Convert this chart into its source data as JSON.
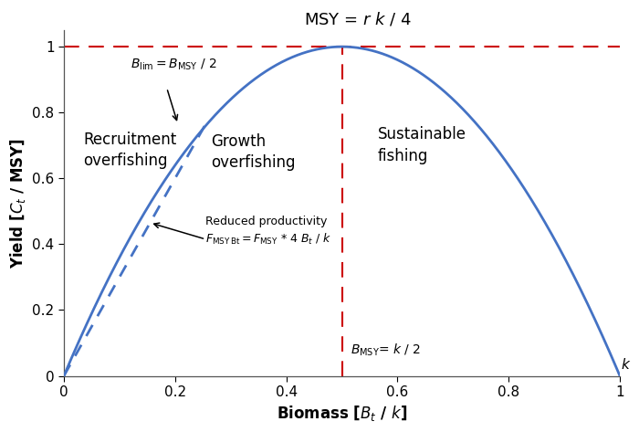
{
  "title": "MSY = $r$ $k$ / 4",
  "xlabel": "Biomass [$B_t$ / $k$]",
  "ylabel": "Yield [$C_t$ / MSY]",
  "xlim": [
    0,
    1.0
  ],
  "ylim": [
    0,
    1.05
  ],
  "xticks": [
    0,
    0.2,
    0.4,
    0.6,
    0.8,
    1
  ],
  "yticks": [
    0,
    0.2,
    0.4,
    0.6,
    0.8,
    1
  ],
  "B_MSY": 0.5,
  "B_lim": 0.25,
  "curve_color": "#4472C4",
  "red_color": "#CC0000",
  "background_color": "#ffffff",
  "title_fontsize": 13,
  "label_fontsize": 12,
  "tick_fontsize": 11,
  "annot_fontsize": 10,
  "zone_fontsize": 12
}
